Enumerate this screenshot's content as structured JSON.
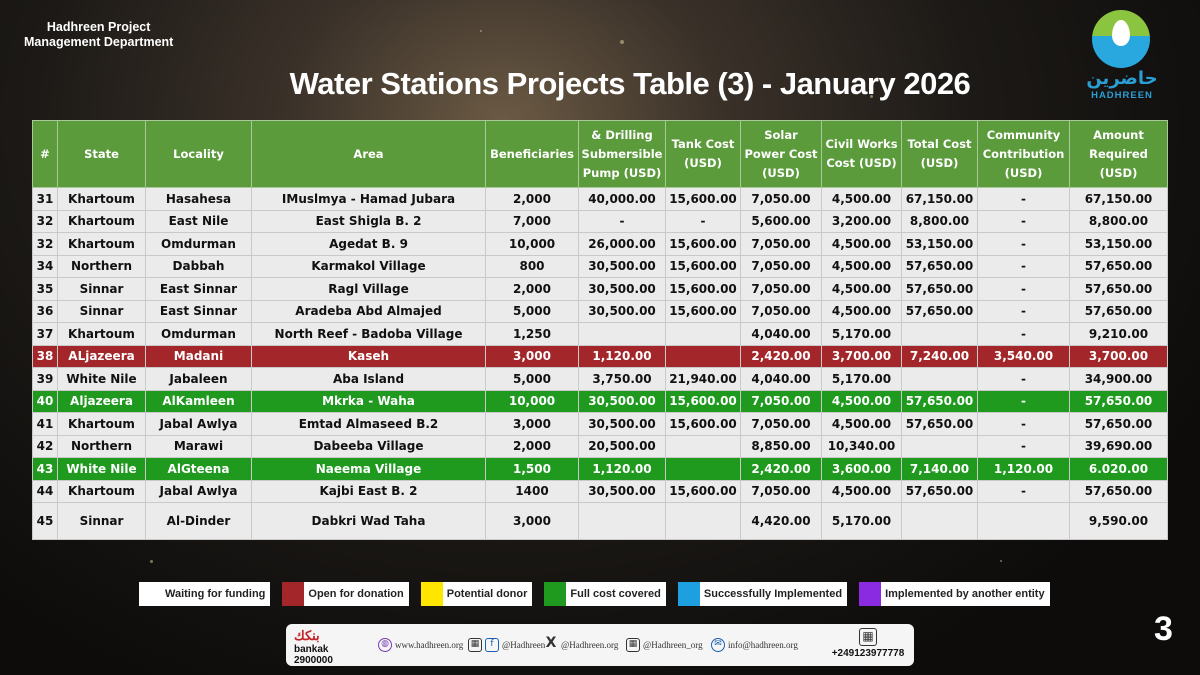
{
  "header": {
    "org_line1": "Hadhreen Project",
    "org_line2": "Management Department",
    "title": "Water Stations Projects Table (3) - January 2026"
  },
  "logo": {
    "arabic": "حاضرين",
    "english": "HADHREEN",
    "icon": "hands-water-drop-icon"
  },
  "table": {
    "columns": [
      "#",
      "State",
      "Locality",
      "Area",
      "Beneficiaries",
      "& Drilling Submersible Pump (USD)",
      "Tank Cost (USD)",
      "Solar Power Cost (USD)",
      "Civil Works Cost (USD)",
      "Total Cost (USD)",
      "Community Contribution (USD)",
      "Amount Required (USD)"
    ],
    "rows": [
      {
        "status": "waiting",
        "cells": [
          "31",
          "Khartoum",
          "Hasahesa",
          "IMuslmya - Hamad Jubara",
          "2,000",
          "40,000.00",
          "15,600.00",
          "7,050.00",
          "4,500.00",
          "67,150.00",
          "-",
          "67,150.00"
        ]
      },
      {
        "status": "waiting",
        "cells": [
          "32",
          "Khartoum",
          "East Nile",
          "East Shigla B. 2",
          "7,000",
          "-",
          "-",
          "5,600.00",
          "3,200.00",
          "8,800.00",
          "-",
          "8,800.00"
        ]
      },
      {
        "status": "waiting",
        "cells": [
          "32",
          "Khartoum",
          "Omdurman",
          "Agedat B. 9",
          "10,000",
          "26,000.00",
          "15,600.00",
          "7,050.00",
          "4,500.00",
          "53,150.00",
          "-",
          "53,150.00"
        ]
      },
      {
        "status": "waiting",
        "cells": [
          "34",
          "Northern",
          "Dabbah",
          "Karmakol Village",
          "800",
          "30,500.00",
          "15,600.00",
          "7,050.00",
          "4,500.00",
          "57,650.00",
          "-",
          "57,650.00"
        ]
      },
      {
        "status": "waiting",
        "cells": [
          "35",
          "Sinnar",
          "East Sinnar",
          "Ragl Village",
          "2,000",
          "30,500.00",
          "15,600.00",
          "7,050.00",
          "4,500.00",
          "57,650.00",
          "-",
          "57,650.00"
        ]
      },
      {
        "status": "waiting",
        "cells": [
          "36",
          "Sinnar",
          "East Sinnar",
          "Aradeba Abd Almajed",
          "5,000",
          "30,500.00",
          "15,600.00",
          "7,050.00",
          "4,500.00",
          "57,650.00",
          "-",
          "57,650.00"
        ]
      },
      {
        "status": "waiting",
        "cells": [
          "37",
          "Khartoum",
          "Omdurman",
          "North Reef - Badoba Village",
          "1,250",
          "",
          "",
          "4,040.00",
          "5,170.00",
          "",
          "-",
          "9,210.00"
        ]
      },
      {
        "status": "open",
        "cells": [
          "38",
          "ALjazeera",
          "Madani",
          "Kaseh",
          "3,000",
          "1,120.00",
          "",
          "2,420.00",
          "3,700.00",
          "7,240.00",
          "3,540.00",
          "3,700.00"
        ]
      },
      {
        "status": "waiting",
        "cells": [
          "39",
          "White Nile",
          "Jabaleen",
          "Aba Island",
          "5,000",
          "3,750.00",
          "21,940.00",
          "4,040.00",
          "5,170.00",
          "",
          "-",
          "34,900.00"
        ]
      },
      {
        "status": "covered",
        "cells": [
          "40",
          "Aljazeera",
          "AlKamleen",
          "Mkrka - Waha",
          "10,000",
          "30,500.00",
          "15,600.00",
          "7,050.00",
          "4,500.00",
          "57,650.00",
          "-",
          "57,650.00"
        ]
      },
      {
        "status": "waiting",
        "cells": [
          "41",
          "Khartoum",
          "Jabal Awlya",
          "Emtad Almaseed B.2",
          "3,000",
          "30,500.00",
          "15,600.00",
          "7,050.00",
          "4,500.00",
          "57,650.00",
          "-",
          "57,650.00"
        ]
      },
      {
        "status": "waiting",
        "cells": [
          "42",
          "Northern",
          "Marawi",
          "Dabeeba Village",
          "2,000",
          "20,500.00",
          "",
          "8,850.00",
          "10,340.00",
          "",
          "-",
          "39,690.00"
        ]
      },
      {
        "status": "covered",
        "cells": [
          "43",
          "White Nile",
          "AlGteena",
          "Naeema Village",
          "1,500",
          "1,120.00",
          "",
          "2,420.00",
          "3,600.00",
          "7,140.00",
          "1,120.00",
          "6.020.00"
        ]
      },
      {
        "status": "waiting",
        "cells": [
          "44",
          "Khartoum",
          "Jabal Awlya",
          "Kajbi East B. 2",
          "1400",
          "30,500.00",
          "15,600.00",
          "7,050.00",
          "4,500.00",
          "57,650.00",
          "-",
          "57,650.00"
        ]
      },
      {
        "status": "waiting",
        "cells": [
          "45",
          "Sinnar",
          "Al-Dinder",
          "Dabkri Wad Taha",
          "3,000",
          "",
          "",
          "4,420.00",
          "5,170.00",
          "",
          "",
          "9,590.00"
        ]
      }
    ]
  },
  "legend": [
    {
      "label": "Waiting for funding",
      "color": "#ffffff"
    },
    {
      "label": "Open for donation",
      "color": "#a3272a"
    },
    {
      "label": "Potential donor",
      "color": "#ffe600"
    },
    {
      "label": "Full cost covered",
      "color": "#1f9a1f"
    },
    {
      "label": "Successfully Implemented",
      "color": "#1ea0e0"
    },
    {
      "label": "Implemented by another entity",
      "color": "#8a2be2"
    }
  ],
  "footer": {
    "bankak_brand": "بنكك",
    "bankak_name": "bankak",
    "bankak_number": "2900000",
    "website": "www.hadhreen.org",
    "facebook": "@Hadhreen",
    "x_handle": "@Hadhreen.org",
    "instagram": "@Hadhreen_org",
    "email": "info@hadhreen.org",
    "phone": "+249123977778"
  },
  "page_number": "3",
  "colors": {
    "header_green": "#5c9b3c",
    "open_red": "#a3272a",
    "covered_green": "#1f9a1f"
  }
}
